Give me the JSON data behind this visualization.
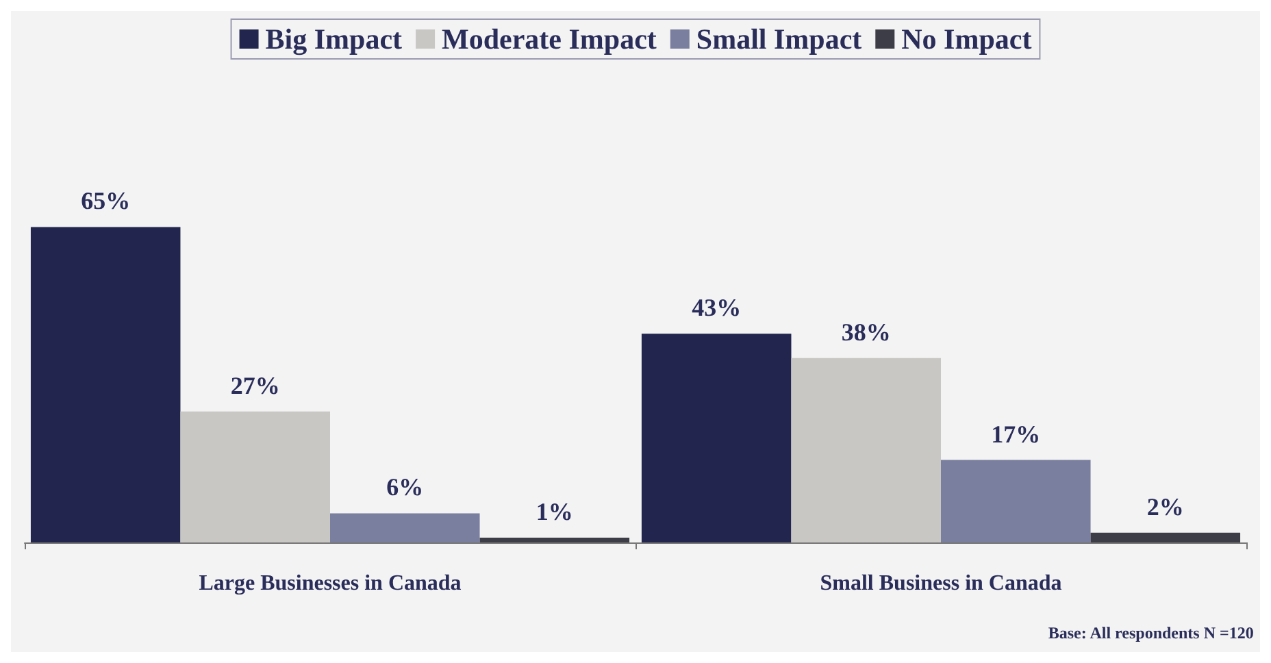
{
  "chart_data": {
    "type": "bar",
    "categories": [
      "Large Businesses in Canada",
      "Small Business in Canada"
    ],
    "series": [
      {
        "name": "Big Impact",
        "color": "#22264f",
        "values": [
          65,
          43
        ],
        "value_labels": [
          "65%",
          "43%"
        ]
      },
      {
        "name": "Moderate Impact",
        "color": "#c9c7c3",
        "values": [
          27,
          38
        ],
        "value_labels": [
          "27%",
          "38%"
        ]
      },
      {
        "name": "Small Impact",
        "color": "#7b7f9f",
        "values": [
          6,
          17
        ],
        "value_labels": [
          "6%",
          "17%"
        ]
      },
      {
        "name": "No Impact",
        "color": "#3d3d47",
        "values": [
          1,
          2
        ],
        "value_labels": [
          "1%",
          "2%"
        ]
      }
    ],
    "legend": "top",
    "grid": false,
    "tick_labels": "x",
    "annotations": [
      "Base: All respondents N =120"
    ]
  }
}
